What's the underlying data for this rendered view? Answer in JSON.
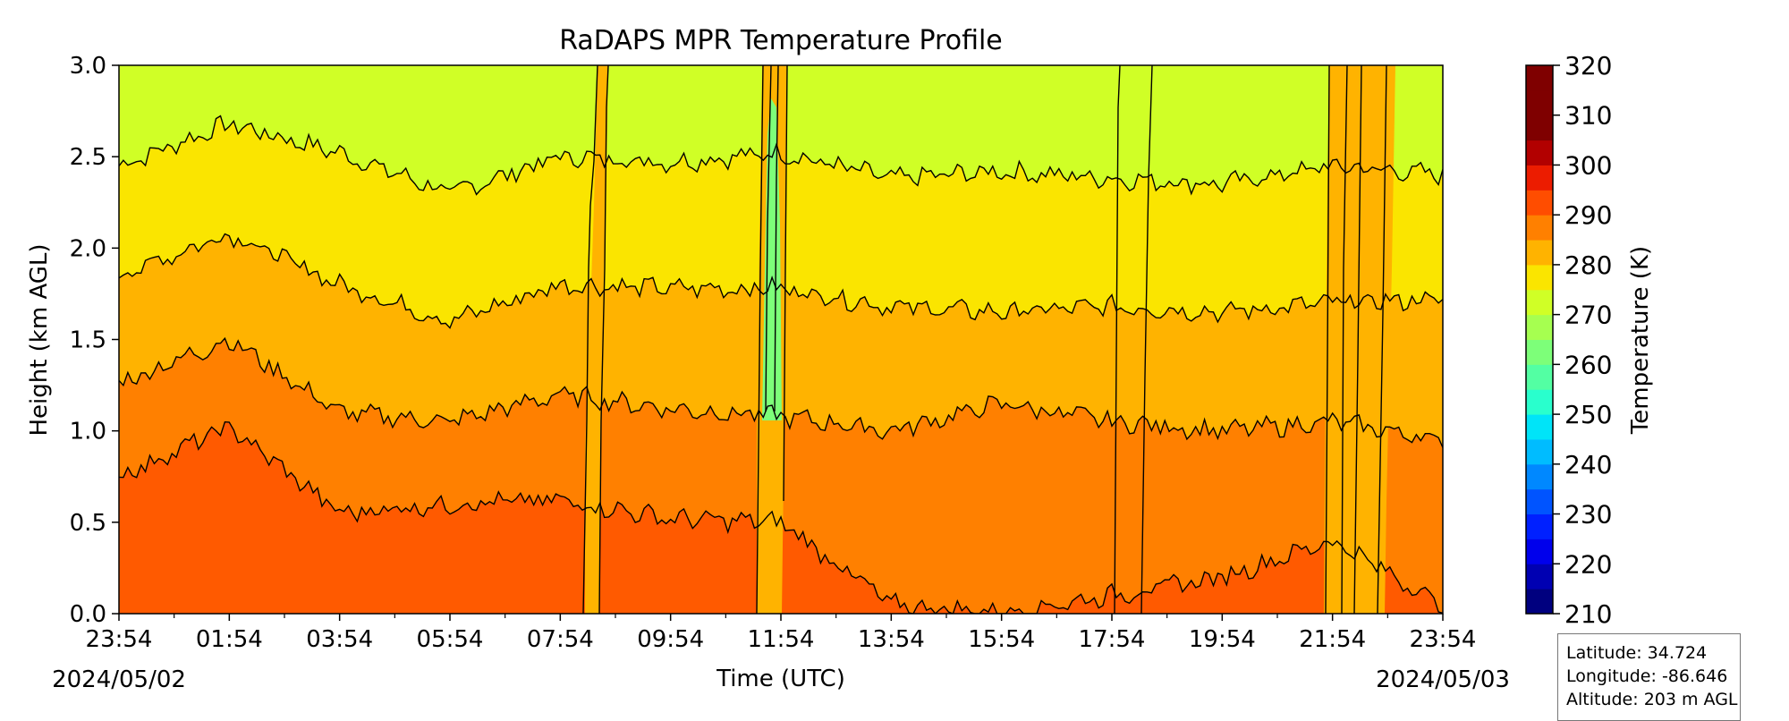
{
  "chart_data": {
    "type": "heatmap",
    "title": "RaDAPS MPR Temperature Profile",
    "xlabel": "Time (UTC)",
    "ylabel": "Height (km AGL)",
    "x_ticks": [
      "23:54",
      "01:54",
      "03:54",
      "05:54",
      "07:54",
      "09:54",
      "11:54",
      "13:54",
      "15:54",
      "17:54",
      "19:54",
      "21:54",
      "23:54"
    ],
    "date_start": "2024/05/02",
    "date_end": "2024/05/03",
    "ylim": [
      0.0,
      3.0
    ],
    "y_ticks": [
      "0.0",
      "0.5",
      "1.0",
      "1.5",
      "2.0",
      "2.5",
      "3.0"
    ],
    "colorbar": {
      "label": "Temperature (K)",
      "range": [
        210,
        320
      ],
      "step": 5,
      "tick_labels": [
        "210",
        "220",
        "230",
        "240",
        "250",
        "260",
        "270",
        "280",
        "290",
        "300",
        "310",
        "320"
      ],
      "colors": [
        "#00007f",
        "#0000b2",
        "#0000ec",
        "#0020ff",
        "#0054ff",
        "#0088ff",
        "#00bcff",
        "#00e4f8",
        "#29ffcd",
        "#53ffa3",
        "#7dff79",
        "#a6ff50",
        "#d0ff26",
        "#fae500",
        "#ffb300",
        "#ff8000",
        "#ff4d00",
        "#ec1c00",
        "#b20000",
        "#7f0000",
        "#7f0000",
        "#7f0000"
      ]
    },
    "contour_levels_K": [
      275,
      280,
      285,
      290,
      295,
      300
    ],
    "contours": [
      {
        "level": 280,
        "heights_km": [
          2.45,
          2.68,
          2.52,
          2.3,
          2.5,
          2.47,
          2.52,
          2.38,
          2.42,
          2.38,
          2.35,
          2.45,
          2.4
        ]
      },
      {
        "level": 285,
        "heights_km": [
          1.85,
          2.08,
          1.8,
          1.6,
          1.8,
          1.78,
          1.78,
          1.68,
          1.65,
          1.68,
          1.65,
          1.7,
          1.72
        ]
      },
      {
        "level": 290,
        "heights_km": [
          1.26,
          1.5,
          1.1,
          1.05,
          1.2,
          1.12,
          1.08,
          1.0,
          1.15,
          1.05,
          1.0,
          1.05,
          0.95
        ]
      },
      {
        "level": 295,
        "heights_km": [
          0.75,
          1.02,
          0.55,
          0.6,
          0.62,
          0.52,
          0.5,
          0.05,
          0.0,
          0.1,
          0.2,
          0.4,
          0.05
        ]
      }
    ],
    "info": {
      "latitude": "Latitude: 34.724",
      "longitude": "Longitude: -86.646",
      "altitude": "Altitude: 203 m AGL"
    }
  }
}
